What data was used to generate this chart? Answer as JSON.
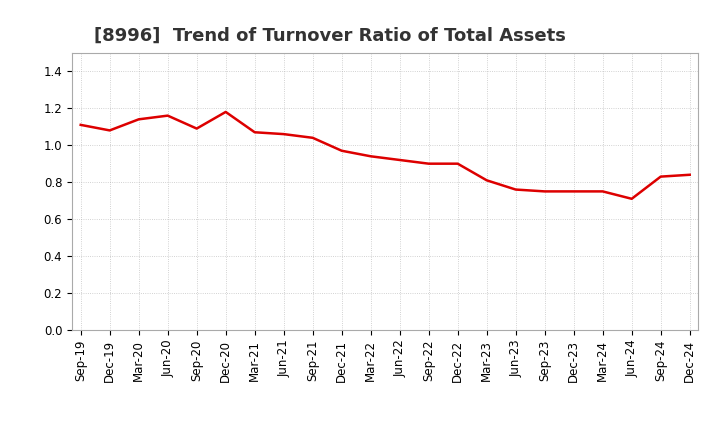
{
  "title": "[8996]  Trend of Turnover Ratio of Total Assets",
  "labels": [
    "Sep-19",
    "Dec-19",
    "Mar-20",
    "Jun-20",
    "Sep-20",
    "Dec-20",
    "Mar-21",
    "Jun-21",
    "Sep-21",
    "Dec-21",
    "Mar-22",
    "Jun-22",
    "Sep-22",
    "Dec-22",
    "Mar-23",
    "Jun-23",
    "Sep-23",
    "Dec-23",
    "Mar-24",
    "Jun-24",
    "Sep-24",
    "Dec-24"
  ],
  "values": [
    1.11,
    1.08,
    1.14,
    1.16,
    1.09,
    1.18,
    1.07,
    1.06,
    1.04,
    0.97,
    0.94,
    0.92,
    0.9,
    0.9,
    0.81,
    0.76,
    0.75,
    0.75,
    0.75,
    0.71,
    0.83,
    0.84
  ],
  "line_color": "#dd0000",
  "background_color": "#ffffff",
  "grid_color": "#aaaaaa",
  "ylim": [
    0.0,
    1.5
  ],
  "yticks": [
    0.0,
    0.2,
    0.4,
    0.6,
    0.8,
    1.0,
    1.2,
    1.4
  ],
  "title_fontsize": 13,
  "tick_fontsize": 8.5,
  "line_width": 1.8
}
